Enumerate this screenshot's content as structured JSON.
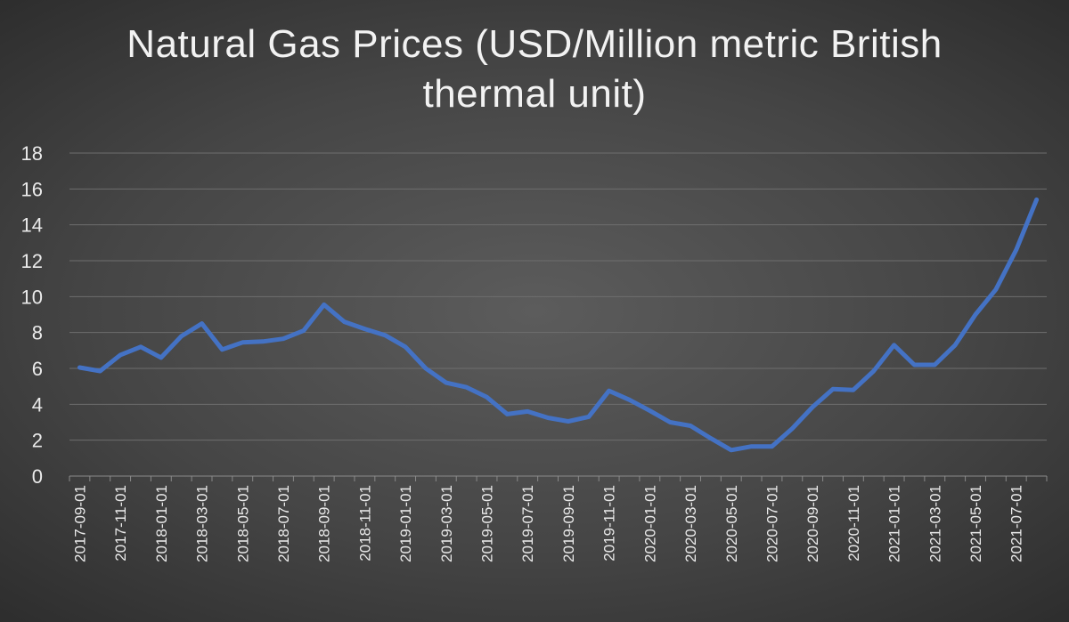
{
  "chart_data": {
    "type": "line",
    "title": "Natural Gas Prices (USD/Million metric British thermal unit)",
    "xlabel": "",
    "ylabel": "",
    "ylim": [
      0,
      18
    ],
    "yticks": [
      0,
      2,
      4,
      6,
      8,
      10,
      12,
      14,
      16,
      18
    ],
    "grid": true,
    "legend": "none",
    "line_color": "#4472c4",
    "x": [
      "2017-09-01",
      "2017-10-01",
      "2017-11-01",
      "2017-12-01",
      "2018-01-01",
      "2018-02-01",
      "2018-03-01",
      "2018-04-01",
      "2018-05-01",
      "2018-06-01",
      "2018-07-01",
      "2018-08-01",
      "2018-09-01",
      "2018-10-01",
      "2018-11-01",
      "2018-12-01",
      "2019-01-01",
      "2019-02-01",
      "2019-03-01",
      "2019-04-01",
      "2019-05-01",
      "2019-06-01",
      "2019-07-01",
      "2019-08-01",
      "2019-09-01",
      "2019-10-01",
      "2019-11-01",
      "2019-12-01",
      "2020-01-01",
      "2020-02-01",
      "2020-03-01",
      "2020-04-01",
      "2020-05-01",
      "2020-06-01",
      "2020-07-01",
      "2020-08-01",
      "2020-09-01",
      "2020-10-01",
      "2020-11-01",
      "2020-12-01",
      "2021-01-01",
      "2021-02-01",
      "2021-03-01",
      "2021-04-01",
      "2021-05-01",
      "2021-06-01",
      "2021-07-01",
      "2021-08-01"
    ],
    "values": [
      6.05,
      5.85,
      6.75,
      7.2,
      6.6,
      7.8,
      8.5,
      7.05,
      7.45,
      7.5,
      7.65,
      8.1,
      9.55,
      8.6,
      8.2,
      7.85,
      7.2,
      6.0,
      5.2,
      4.95,
      4.4,
      3.45,
      3.6,
      3.25,
      3.05,
      3.3,
      4.75,
      4.25,
      3.65,
      3.0,
      2.8,
      2.1,
      1.45,
      1.65,
      1.65,
      2.65,
      3.85,
      4.85,
      4.8,
      5.85,
      7.3,
      6.2,
      6.2,
      7.3,
      9.0,
      10.4,
      12.6,
      15.4
    ],
    "xtick_labels": [
      "2017-09-01",
      "2017-11-01",
      "2018-01-01",
      "2018-03-01",
      "2018-05-01",
      "2018-07-01",
      "2018-09-01",
      "2018-11-01",
      "2019-01-01",
      "2019-03-01",
      "2019-05-01",
      "2019-07-01",
      "2019-09-01",
      "2019-11-01",
      "2020-01-01",
      "2020-03-01",
      "2020-05-01",
      "2020-07-01",
      "2020-09-01",
      "2020-11-01",
      "2021-01-01",
      "2021-03-01",
      "2021-05-01",
      "2021-07-01"
    ]
  }
}
